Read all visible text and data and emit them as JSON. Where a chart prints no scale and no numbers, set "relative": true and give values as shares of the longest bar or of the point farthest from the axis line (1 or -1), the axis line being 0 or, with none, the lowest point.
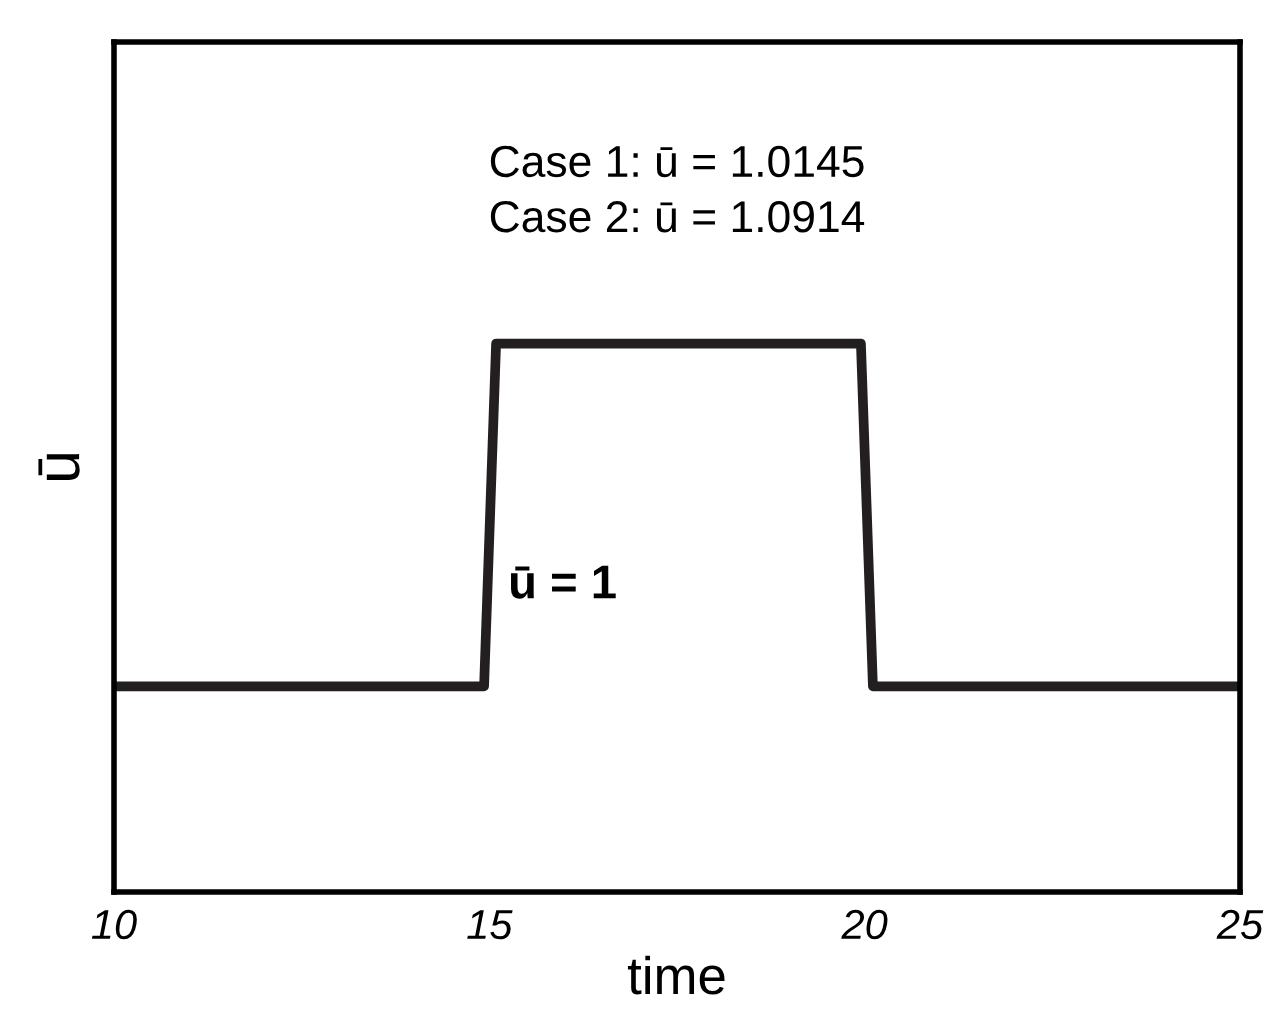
{
  "chart_data": {
    "type": "line",
    "relative": true,
    "xlabel": "time",
    "ylabel": "ū",
    "xlim": [
      10,
      25
    ],
    "xticks": [
      10,
      15,
      20,
      25
    ],
    "series": [
      {
        "color": "#231f20",
        "x": [
          10,
          14.93,
          15.09,
          19.95,
          20.11,
          25
        ],
        "values": [
          0.375,
          0.375,
          1,
          1,
          0.375,
          0.375
        ]
      }
    ],
    "annotations": [
      "Case 1: ū = 1.0145",
      "Case 2: ū = 1.0914",
      "ū = 1"
    ],
    "grid": false,
    "legend": false,
    "marker": "none",
    "line_style": "solid"
  }
}
